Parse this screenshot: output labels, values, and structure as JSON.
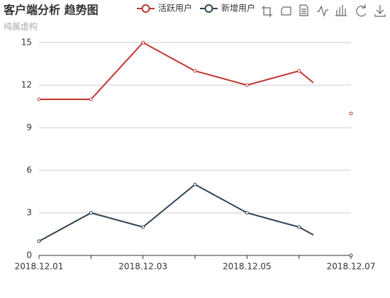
{
  "chart_data": {
    "type": "line",
    "title": "客户端分析 趋势图",
    "subtitle": "纯属虚构",
    "categories": [
      "2018.12.01",
      null,
      "2018.12.03",
      null,
      "2018.12.05",
      null,
      "2018.12.07"
    ],
    "series": [
      {
        "name": "活跃用户",
        "color": "#c23531",
        "values": [
          11,
          11,
          15,
          13,
          12,
          13,
          10
        ]
      },
      {
        "name": "新增用户",
        "color": "#2f4554",
        "values": [
          1,
          3,
          2,
          5,
          3,
          2,
          0
        ]
      }
    ],
    "ylim": [
      0,
      15
    ],
    "yticks": [
      0,
      3,
      6,
      9,
      12,
      15
    ],
    "grid": true
  }
}
